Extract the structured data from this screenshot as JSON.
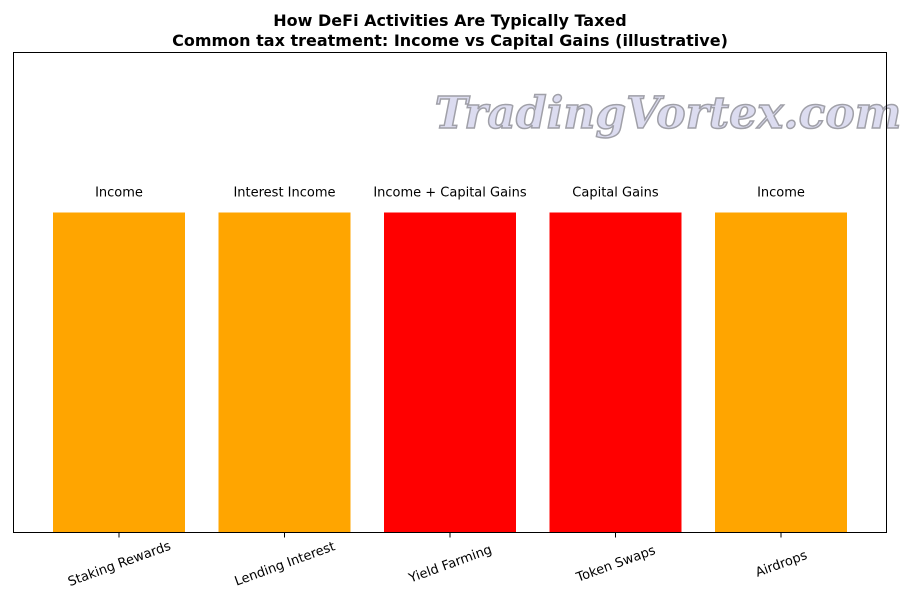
{
  "chart_data": {
    "type": "bar",
    "title": "How DeFi Activities Are Typically Taxed",
    "subtitle": "Common tax treatment: Income vs Capital Gains (illustrative)",
    "xlabel": "",
    "ylabel": "",
    "categories": [
      "Staking Rewards",
      "Lending Interest",
      "Yield Farming",
      "Token Swaps",
      "Airdrops"
    ],
    "values": [
      1,
      1,
      1,
      1,
      1
    ],
    "data_labels": [
      "Income",
      "Interest Income",
      "Income + Capital Gains",
      "Capital Gains",
      "Income"
    ],
    "colors": [
      "#FFA500",
      "#FFA500",
      "#FF0000",
      "#FF0000",
      "#FFA500"
    ],
    "ylim": [
      0,
      1.5
    ],
    "y_ticks_visible": false,
    "grid": false,
    "legend": "none"
  },
  "watermark": "TradingVortex.com"
}
